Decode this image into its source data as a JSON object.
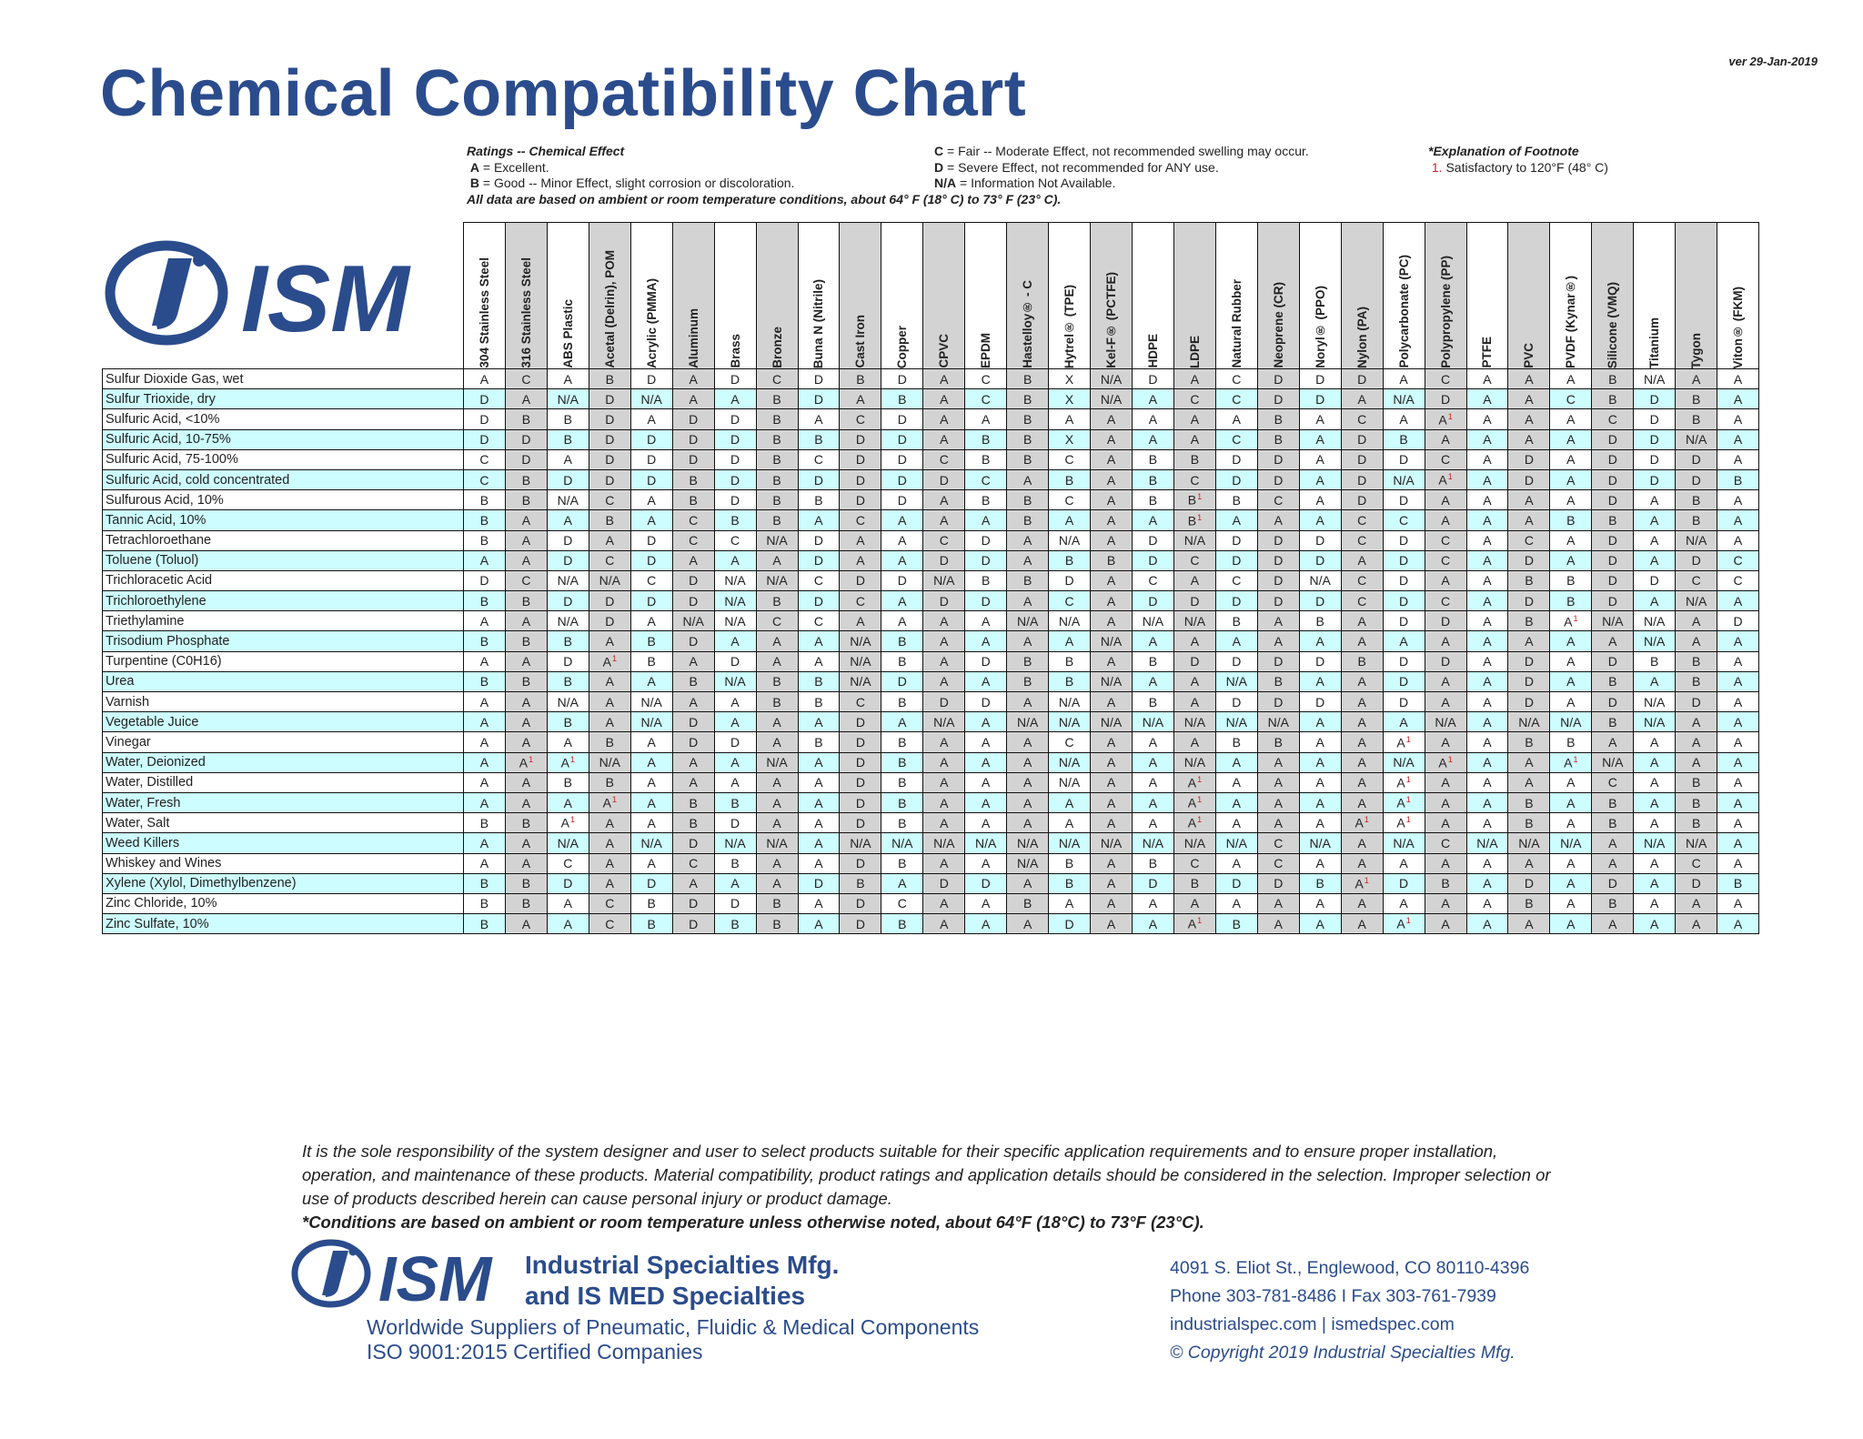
{
  "version": "ver 29-Jan-2019",
  "title": "Chemical Compatibility Chart",
  "legend": {
    "heading": "Ratings -- Chemical Effect",
    "a_key": "A",
    "a_text": " = Excellent.",
    "b_key": "B",
    "b_text": " = Good -- Minor Effect, slight corrosion or discoloration.",
    "ambient": "All data are based on ambient or room temperature conditions, about 64° F (18° C) to 73° F (23° C).",
    "c_key": "C",
    "c_text": " = Fair -- Moderate Effect, not recommended swelling may occur.",
    "d_key": "D",
    "d_text": " = Severe Effect, not recommended for ANY use.",
    "na_key": "N/A",
    "na_text": " = Information Not Available.",
    "footnote_heading": "*Explanation of Footnote",
    "footnote_num": "1.",
    "footnote_text": " Satisfactory to 120°F (48° C)"
  },
  "logo": {
    "text": "ISM",
    "mark": "IS"
  },
  "columns": [
    "304 Stainless Steel",
    "316 Stainless Steel",
    "ABS Plastic",
    "Acetal (Delrin), POM",
    "Acrylic (PMMA)",
    "Aluminum",
    "Brass",
    "Bronze",
    "Buna N (Nitrile)",
    "Cast Iron",
    "Copper",
    "CPVC",
    "EPDM",
    "Hastelloy® - C",
    "Hytrel® (TPE)",
    "Kel-F® (PCTFE)",
    "HDPE",
    "LDPE",
    "Natural Rubber",
    "Neoprene (CR)",
    "Noryl® (PPO)",
    "Nylon (PA)",
    "Polycarbonate (PC)",
    "Polypropylene (PP)",
    "PTFE",
    "PVC",
    "PVDF (Kynar®)",
    "Silicone (VMQ)",
    "Titanium",
    "Tygon",
    "Viton® (FKM)"
  ],
  "rows": [
    {
      "name": "Sulfur Dioxide Gas, wet",
      "v": [
        "A",
        "C",
        "A",
        "B",
        "D",
        "A",
        "D",
        "C",
        "D",
        "B",
        "D",
        "A",
        "C",
        "B",
        "X",
        "N/A",
        "D",
        "A",
        "C",
        "D",
        "D",
        "D",
        "A",
        "C",
        "A",
        "A",
        "A",
        "B",
        "N/A",
        "A",
        "A"
      ]
    },
    {
      "name": "Sulfur Trioxide, dry",
      "v": [
        "D",
        "A",
        "N/A",
        "D",
        "N/A",
        "A",
        "A",
        "B",
        "D",
        "A",
        "B",
        "A",
        "C",
        "B",
        "X",
        "N/A",
        "A",
        "C",
        "C",
        "D",
        "D",
        "A",
        "N/A",
        "D",
        "A",
        "A",
        "C",
        "B",
        "D",
        "B",
        "A"
      ]
    },
    {
      "name": "Sulfuric Acid, <10%",
      "v": [
        "D",
        "B",
        "B",
        "D",
        "A",
        "D",
        "D",
        "B",
        "A",
        "C",
        "D",
        "A",
        "A",
        "B",
        "A",
        "A",
        "A",
        "A",
        "A",
        "B",
        "A",
        "C",
        "A",
        "A¹",
        "A",
        "A",
        "A",
        "C",
        "D",
        "B",
        "A"
      ]
    },
    {
      "name": "Sulfuric Acid, 10-75%",
      "v": [
        "D",
        "D",
        "B",
        "D",
        "D",
        "D",
        "D",
        "B",
        "B",
        "D",
        "D",
        "A",
        "B",
        "B",
        "X",
        "A",
        "A",
        "A",
        "C",
        "B",
        "A",
        "D",
        "B",
        "A",
        "A",
        "A",
        "A",
        "D",
        "D",
        "N/A",
        "A"
      ]
    },
    {
      "name": "Sulfuric Acid, 75-100%",
      "v": [
        "C",
        "D",
        "A",
        "D",
        "D",
        "D",
        "D",
        "B",
        "C",
        "D",
        "D",
        "C",
        "B",
        "B",
        "C",
        "A",
        "B",
        "B",
        "D",
        "D",
        "A",
        "D",
        "D",
        "C",
        "A",
        "D",
        "A",
        "D",
        "D",
        "D",
        "A"
      ]
    },
    {
      "name": "Sulfuric Acid, cold concentrated",
      "v": [
        "C",
        "B",
        "D",
        "D",
        "D",
        "B",
        "D",
        "B",
        "D",
        "D",
        "D",
        "D",
        "C",
        "A",
        "B",
        "A",
        "B",
        "C",
        "D",
        "D",
        "A",
        "D",
        "N/A",
        "A¹",
        "A",
        "D",
        "A",
        "D",
        "D",
        "D",
        "B"
      ]
    },
    {
      "name": "Sulfurous Acid, 10%",
      "v": [
        "B",
        "B",
        "N/A",
        "C",
        "A",
        "B",
        "D",
        "B",
        "B",
        "D",
        "D",
        "A",
        "B",
        "B",
        "C",
        "A",
        "B",
        "B¹",
        "B",
        "C",
        "A",
        "D",
        "D",
        "A",
        "A",
        "A",
        "A",
        "D",
        "A",
        "B",
        "A"
      ]
    },
    {
      "name": "Tannic Acid, 10%",
      "v": [
        "B",
        "A",
        "A",
        "B",
        "A",
        "C",
        "B",
        "B",
        "A",
        "C",
        "A",
        "A",
        "A",
        "B",
        "A",
        "A",
        "A",
        "B¹",
        "A",
        "A",
        "A",
        "C",
        "C",
        "A",
        "A",
        "A",
        "B",
        "B",
        "A",
        "B",
        "A"
      ]
    },
    {
      "name": "Tetrachloroethane",
      "v": [
        "B",
        "A",
        "D",
        "A",
        "D",
        "C",
        "C",
        "N/A",
        "D",
        "A",
        "A",
        "C",
        "D",
        "A",
        "N/A",
        "A",
        "D",
        "N/A",
        "D",
        "D",
        "D",
        "C",
        "D",
        "C",
        "A",
        "C",
        "A",
        "D",
        "A",
        "N/A",
        "A"
      ]
    },
    {
      "name": "Toluene (Toluol)",
      "v": [
        "A",
        "A",
        "D",
        "C",
        "D",
        "A",
        "A",
        "A",
        "D",
        "A",
        "A",
        "D",
        "D",
        "A",
        "B",
        "B",
        "D",
        "C",
        "D",
        "D",
        "D",
        "A",
        "D",
        "C",
        "A",
        "D",
        "A",
        "D",
        "A",
        "D",
        "C"
      ]
    },
    {
      "name": "Trichloracetic Acid",
      "v": [
        "D",
        "C",
        "N/A",
        "N/A",
        "C",
        "D",
        "N/A",
        "N/A",
        "C",
        "D",
        "D",
        "N/A",
        "B",
        "B",
        "D",
        "A",
        "C",
        "A",
        "C",
        "D",
        "N/A",
        "C",
        "D",
        "A",
        "A",
        "B",
        "B",
        "D",
        "D",
        "C",
        "C"
      ]
    },
    {
      "name": "Trichloroethylene",
      "v": [
        "B",
        "B",
        "D",
        "D",
        "D",
        "D",
        "N/A",
        "B",
        "D",
        "C",
        "A",
        "D",
        "D",
        "A",
        "C",
        "A",
        "D",
        "D",
        "D",
        "D",
        "D",
        "C",
        "D",
        "C",
        "A",
        "D",
        "B",
        "D",
        "A",
        "N/A",
        "A"
      ]
    },
    {
      "name": "Triethylamine",
      "v": [
        "A",
        "A",
        "N/A",
        "D",
        "A",
        "N/A",
        "N/A",
        "C",
        "C",
        "A",
        "A",
        "A",
        "A",
        "N/A",
        "N/A",
        "A",
        "N/A",
        "N/A",
        "B",
        "A",
        "B",
        "A",
        "D",
        "D",
        "A",
        "B",
        "A¹",
        "N/A",
        "N/A",
        "A",
        "D"
      ]
    },
    {
      "name": "Trisodium Phosphate",
      "v": [
        "B",
        "B",
        "B",
        "A",
        "B",
        "D",
        "A",
        "A",
        "A",
        "N/A",
        "B",
        "A",
        "A",
        "A",
        "A",
        "N/A",
        "A",
        "A",
        "A",
        "A",
        "A",
        "A",
        "A",
        "A",
        "A",
        "A",
        "A",
        "A",
        "N/A",
        "A",
        "A"
      ]
    },
    {
      "name": "Turpentine (C0H16)",
      "v": [
        "A",
        "A",
        "D",
        "A¹",
        "B",
        "A",
        "D",
        "A",
        "A",
        "N/A",
        "B",
        "A",
        "D",
        "B",
        "B",
        "A",
        "B",
        "D",
        "D",
        "D",
        "D",
        "B",
        "D",
        "D",
        "A",
        "D",
        "A",
        "D",
        "B",
        "B",
        "A"
      ]
    },
    {
      "name": "Urea",
      "v": [
        "B",
        "B",
        "B",
        "A",
        "A",
        "B",
        "N/A",
        "B",
        "B",
        "N/A",
        "D",
        "A",
        "A",
        "B",
        "B",
        "N/A",
        "A",
        "A",
        "N/A",
        "B",
        "A",
        "A",
        "D",
        "A",
        "A",
        "D",
        "A",
        "B",
        "A",
        "B",
        "A"
      ]
    },
    {
      "name": "Varnish",
      "v": [
        "A",
        "A",
        "N/A",
        "A",
        "N/A",
        "A",
        "A",
        "B",
        "B",
        "C",
        "B",
        "D",
        "D",
        "A",
        "N/A",
        "A",
        "B",
        "A",
        "D",
        "D",
        "D",
        "A",
        "D",
        "A",
        "A",
        "D",
        "A",
        "D",
        "N/A",
        "D",
        "A"
      ]
    },
    {
      "name": "Vegetable Juice",
      "v": [
        "A",
        "A",
        "B",
        "A",
        "N/A",
        "D",
        "A",
        "A",
        "A",
        "D",
        "A",
        "N/A",
        "A",
        "N/A",
        "N/A",
        "N/A",
        "N/A",
        "N/A",
        "N/A",
        "N/A",
        "A",
        "A",
        "A",
        "N/A",
        "A",
        "N/A",
        "N/A",
        "B",
        "N/A",
        "A",
        "A"
      ]
    },
    {
      "name": "Vinegar",
      "v": [
        "A",
        "A",
        "A",
        "B",
        "A",
        "D",
        "D",
        "A",
        "B",
        "D",
        "B",
        "A",
        "A",
        "A",
        "C",
        "A",
        "A",
        "A",
        "B",
        "B",
        "A",
        "A",
        "A¹",
        "A",
        "A",
        "B",
        "B",
        "A",
        "A",
        "A",
        "A"
      ]
    },
    {
      "name": "Water, Deionized",
      "v": [
        "A",
        "A¹",
        "A¹",
        "N/A",
        "A",
        "A",
        "A",
        "N/A",
        "A",
        "D",
        "B",
        "A",
        "A",
        "A",
        "N/A",
        "A",
        "A",
        "N/A",
        "A",
        "A",
        "A",
        "A",
        "N/A",
        "A¹",
        "A",
        "A",
        "A¹",
        "N/A",
        "A",
        "A",
        "A"
      ]
    },
    {
      "name": "Water, Distilled",
      "v": [
        "A",
        "A",
        "B",
        "B",
        "A",
        "A",
        "A",
        "A",
        "A",
        "D",
        "B",
        "A",
        "A",
        "A",
        "N/A",
        "A",
        "A",
        "A¹",
        "A",
        "A",
        "A",
        "A",
        "A¹",
        "A",
        "A",
        "A",
        "A",
        "C",
        "A",
        "B",
        "A"
      ]
    },
    {
      "name": "Water, Fresh",
      "v": [
        "A",
        "A",
        "A",
        "A¹",
        "A",
        "B",
        "B",
        "A",
        "A",
        "D",
        "B",
        "A",
        "A",
        "A",
        "A",
        "A",
        "A",
        "A¹",
        "A",
        "A",
        "A",
        "A",
        "A¹",
        "A",
        "A",
        "B",
        "A",
        "B",
        "A",
        "B",
        "A"
      ]
    },
    {
      "name": "Water, Salt",
      "v": [
        "B",
        "B",
        "A¹",
        "A",
        "A",
        "B",
        "D",
        "A",
        "A",
        "D",
        "B",
        "A",
        "A",
        "A",
        "A",
        "A",
        "A",
        "A¹",
        "A",
        "A",
        "A",
        "A¹",
        "A¹",
        "A",
        "A",
        "B",
        "A",
        "B",
        "A",
        "B",
        "A"
      ]
    },
    {
      "name": "Weed Killers",
      "v": [
        "A",
        "A",
        "N/A",
        "A",
        "N/A",
        "D",
        "N/A",
        "N/A",
        "A",
        "N/A",
        "N/A",
        "N/A",
        "N/A",
        "N/A",
        "N/A",
        "N/A",
        "N/A",
        "N/A",
        "N/A",
        "C",
        "N/A",
        "A",
        "N/A",
        "C",
        "N/A",
        "N/A",
        "N/A",
        "A",
        "N/A",
        "N/A",
        "A"
      ]
    },
    {
      "name": "Whiskey and Wines",
      "v": [
        "A",
        "A",
        "C",
        "A",
        "A",
        "C",
        "B",
        "A",
        "A",
        "D",
        "B",
        "A",
        "A",
        "N/A",
        "B",
        "A",
        "B",
        "C",
        "A",
        "C",
        "A",
        "A",
        "A",
        "A",
        "A",
        "A",
        "A",
        "A",
        "A",
        "C",
        "A"
      ]
    },
    {
      "name": "Xylene (Xylol, Dimethylbenzene)",
      "v": [
        "B",
        "B",
        "D",
        "A",
        "D",
        "A",
        "A",
        "A",
        "D",
        "B",
        "A",
        "D",
        "D",
        "A",
        "B",
        "A",
        "D",
        "B",
        "D",
        "D",
        "B",
        "A¹",
        "D",
        "B",
        "A",
        "D",
        "A",
        "D",
        "A",
        "D",
        "B"
      ]
    },
    {
      "name": "Zinc Chloride, 10%",
      "v": [
        "B",
        "B",
        "A",
        "C",
        "B",
        "D",
        "D",
        "B",
        "A",
        "D",
        "C",
        "A",
        "A",
        "B",
        "A",
        "A",
        "A",
        "A",
        "A",
        "A",
        "A",
        "A",
        "A",
        "A",
        "A",
        "B",
        "A",
        "B",
        "A",
        "A",
        "A"
      ]
    },
    {
      "name": "Zinc Sulfate, 10%",
      "v": [
        "B",
        "A",
        "A",
        "C",
        "B",
        "D",
        "B",
        "B",
        "A",
        "D",
        "B",
        "A",
        "A",
        "A",
        "D",
        "A",
        "A",
        "A¹",
        "B",
        "A",
        "A",
        "A",
        "A¹",
        "A",
        "A",
        "A",
        "A",
        "A",
        "A",
        "A",
        "A"
      ]
    }
  ],
  "disclaimer": {
    "text": "It is the sole responsibility of the system designer and user to select products suitable for their specific application requirements and to ensure proper installation, operation, and maintenance of these products. Material compatibility, product ratings and application details should be considered in the selection. Improper selection or use of products described herein can cause personal injury or product damage.",
    "conditions": "*Conditions are based on ambient or room temperature unless otherwise noted, about 64°F (18°C) to 73°F (23°C)."
  },
  "company": {
    "line1": "Industrial Specialties Mfg.",
    "line2": "and IS MED Specialties",
    "tagline1": "Worldwide Suppliers of Pneumatic, Fluidic & Medical Components",
    "tagline2": "ISO 9001:2015 Certified Companies",
    "address": "4091  S. Eliot St., Englewood, CO 80110-4396",
    "phone": "Phone  303-781-8486 I Fax 303-761-7939",
    "web": "industrialspec.com  |  ismedspec.com",
    "copyright": "© Copyright 2019 Industrial Specialties Mfg."
  },
  "colors": {
    "brand_blue": "#2b4c8c",
    "row_alt": "#cdfdfe",
    "col_gray": "#d3d3d3",
    "footnote_red": "#d01f1f"
  }
}
